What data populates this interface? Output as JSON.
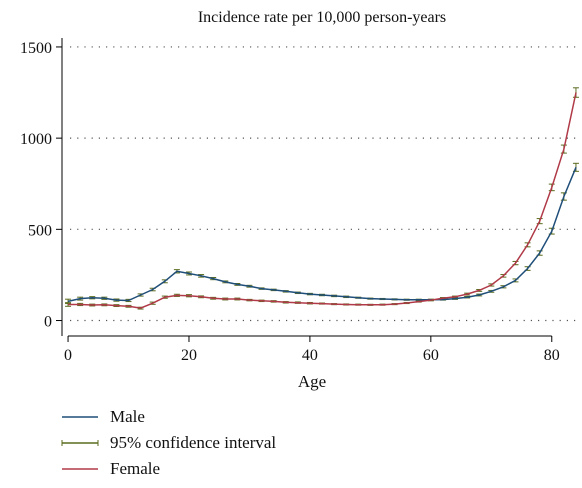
{
  "chart_data": {
    "type": "line",
    "title": "Incidence rate per 10,000 person-years",
    "xlabel": "Age",
    "ylabel": "",
    "xlim": [
      -1,
      85
    ],
    "ylim": [
      -30,
      1560
    ],
    "xticks": [
      0,
      20,
      40,
      60,
      80
    ],
    "yticks": [
      0,
      500,
      1000,
      1500
    ],
    "grid": "horizontal dotted",
    "legend_position": "bottom-left",
    "legend": [
      "Male",
      "95% confidence interval",
      "Female"
    ],
    "colors": {
      "Male": "#1f4e79",
      "95% confidence interval": "#5a6b1e",
      "Female": "#b03a48"
    },
    "x": [
      0,
      2,
      4,
      6,
      8,
      10,
      12,
      14,
      16,
      18,
      20,
      22,
      24,
      26,
      28,
      30,
      32,
      34,
      36,
      38,
      40,
      42,
      44,
      46,
      48,
      50,
      52,
      54,
      56,
      58,
      60,
      62,
      64,
      66,
      68,
      70,
      72,
      74,
      76,
      78,
      80,
      82,
      84
    ],
    "series": [
      {
        "name": "Male",
        "values": [
          105,
          120,
          125,
          122,
          112,
          110,
          140,
          170,
          215,
          270,
          258,
          245,
          230,
          212,
          198,
          188,
          175,
          168,
          160,
          152,
          145,
          140,
          135,
          130,
          125,
          120,
          118,
          116,
          114,
          114,
          114,
          115,
          120,
          128,
          140,
          160,
          185,
          220,
          285,
          370,
          490,
          680,
          840
        ],
        "ci_halfwidth": [
          12,
          8,
          6,
          6,
          6,
          6,
          6,
          7,
          8,
          9,
          8,
          7,
          6,
          5,
          5,
          5,
          4,
          4,
          4,
          4,
          4,
          4,
          4,
          4,
          3,
          3,
          3,
          3,
          3,
          3,
          3,
          3,
          4,
          4,
          5,
          5,
          6,
          8,
          10,
          12,
          16,
          20,
          22
        ]
      },
      {
        "name": "Female",
        "values": [
          88,
          88,
          85,
          86,
          82,
          78,
          68,
          95,
          128,
          138,
          136,
          130,
          122,
          118,
          118,
          112,
          108,
          105,
          100,
          98,
          95,
          93,
          90,
          88,
          87,
          86,
          87,
          90,
          96,
          104,
          112,
          122,
          130,
          145,
          165,
          195,
          245,
          315,
          415,
          545,
          730,
          940,
          1250
        ],
        "ci_halfwidth": [
          10,
          6,
          5,
          5,
          5,
          5,
          5,
          6,
          6,
          6,
          6,
          5,
          5,
          5,
          5,
          4,
          4,
          4,
          4,
          4,
          4,
          3,
          3,
          3,
          3,
          3,
          3,
          3,
          3,
          3,
          4,
          4,
          4,
          5,
          5,
          6,
          7,
          9,
          11,
          14,
          18,
          22,
          26
        ]
      }
    ]
  }
}
